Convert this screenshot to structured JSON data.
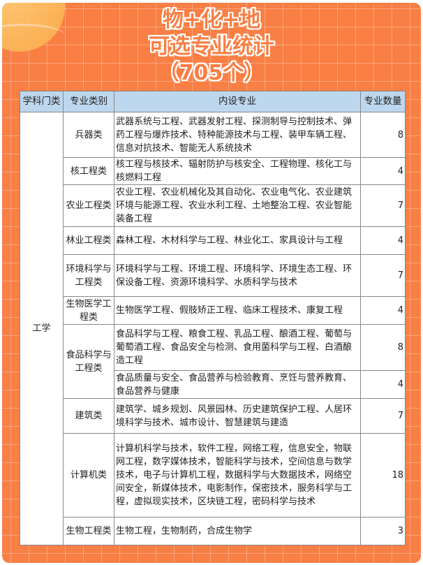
{
  "title": {
    "line1": "物+化+地",
    "line2": "可选专业统计",
    "line3": "（705个）"
  },
  "table": {
    "headers": [
      "学科门类",
      "专业类别",
      "内设专业",
      "专业数量"
    ],
    "discipline": "工学",
    "rows": [
      {
        "category": "兵器类",
        "majors": "武器系统与工程、武器发射工程、探测制导与控制技术、弹药工程与爆炸技术、特种能源技术与工程、装甲车辆工程、信息对抗技术、智能无人系统技术",
        "count": "8"
      },
      {
        "category": "核工程类",
        "majors": "核工程与核技术、辐射防护与核安全、工程物理、核化工与核燃料工程",
        "count": "4"
      },
      {
        "category": "农业工程类",
        "majors": "农业工程、农业机械化及其自动化、农业电气化、农业建筑环境与能源工程、农业水利工程、土地整治工程、农业智能装备工程",
        "count": "7"
      },
      {
        "category": "林业工程类",
        "majors": "森林工程、木材科学与工程、林业化工、家具设计与工程",
        "count": "4"
      },
      {
        "category": "环境科学与工程类",
        "majors": "环境科学与工程、环境工程、环境科学、环境生态工程、环保设备工程、资源环境科学、水质科学与技术",
        "count": "7"
      },
      {
        "category": "生物医学工程类",
        "majors": "生物医学工程、假肢矫正工程、临床工程技术、康复工程",
        "count": "4"
      },
      {
        "category": "食品科学与工程类",
        "majors": "食品科学与工程、粮食工程、乳品工程、酿酒工程、葡萄与葡萄酒工程、食品安全与检测、食用菌科学与工程、白酒酿造工程",
        "count": "8"
      },
      {
        "category": "",
        "majors": "食品质量与安全、食品营养与检验教育、烹饪与营养教育、食品营养与健康",
        "count": "4"
      },
      {
        "category": "建筑类",
        "majors": "建筑学、城乡规划、风景园林、历史建筑保护工程、人居环境科学与技术、城市设计、智慧建筑与建造",
        "count": "7"
      },
      {
        "category": "计算机类",
        "majors": "计算机科学与技术，软件工程，网络工程，信息安全，物联网工程，数字媒体技术，智能科学与技术，空间信息与数学技术，电子与计算机工程，数据科学与大数据技术，网络空间安全，新媒体技术，电影制作，保密技术，服务科学与工程，虚拟现实技术，区块链工程，密码科学与技术",
        "count": "18"
      },
      {
        "category": "生物工程类",
        "majors": "生物工程，生物制药，合成生物学",
        "count": "3"
      }
    ]
  },
  "colors": {
    "background": "#f97f45",
    "header": "#bdd7ee"
  }
}
